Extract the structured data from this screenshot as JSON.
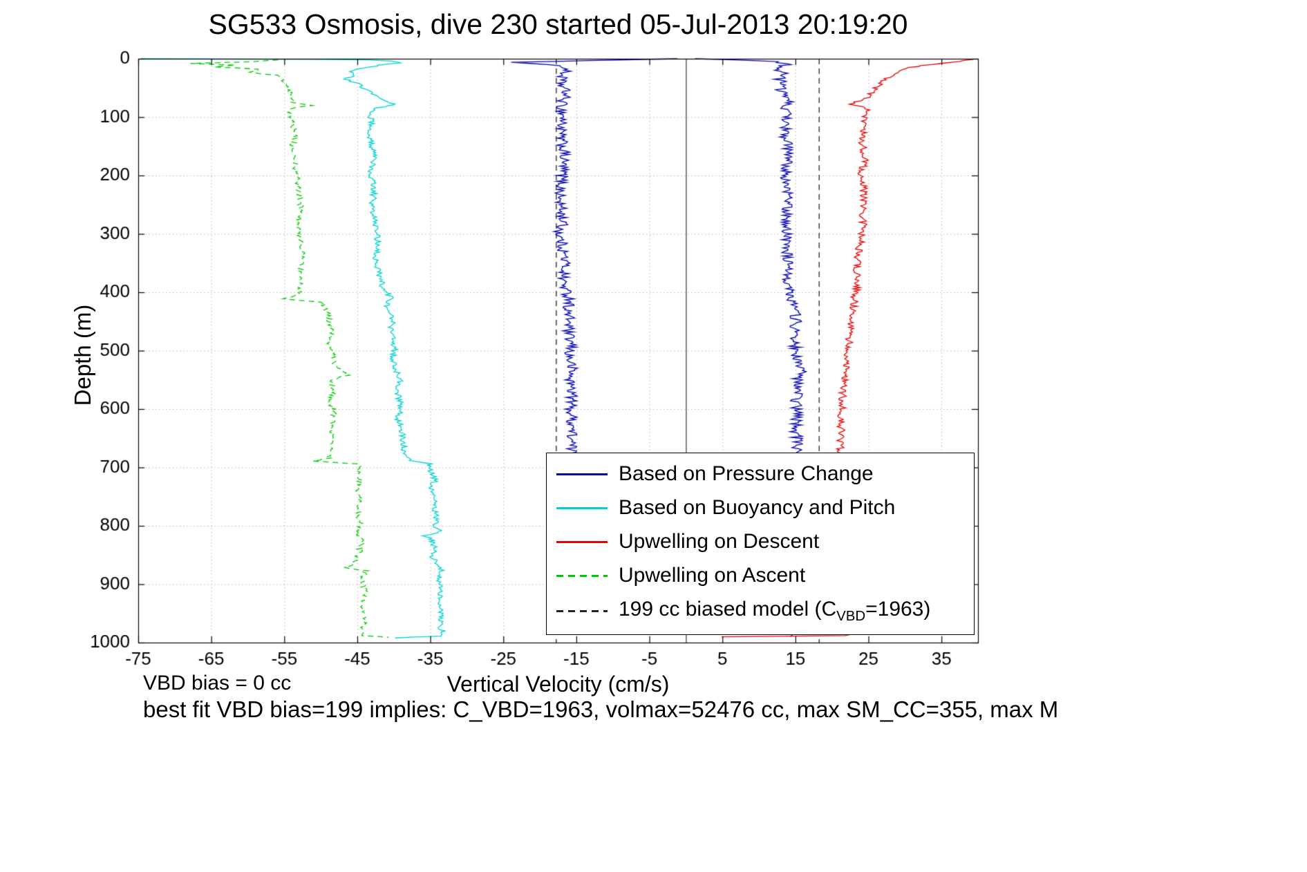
{
  "title": "SG533 Osmosis, dive 230 started 05-Jul-2013 20:19:20",
  "xlabel": "Vertical Velocity (cm/s)",
  "ylabel": "Depth (m)",
  "footer": {
    "vbd_bias": "VBD bias = 0 cc",
    "best_fit": "best fit VBD bias=199 implies: C_VBD=1963, volmax=52476 cc, max SM_CC=355, max M"
  },
  "legend": {
    "items": [
      {
        "label": "Based on Pressure Change",
        "color": "#0000b0",
        "dash": false
      },
      {
        "label": "Based on Buoyancy and Pitch",
        "color": "#00d0d0",
        "dash": false
      },
      {
        "label": "Upwelling on Descent",
        "color": "#e80000",
        "dash": false
      },
      {
        "label": "Upwelling on Ascent",
        "color": "#00c800",
        "dash": true
      },
      {
        "label_prefix": "199 cc biased model (C",
        "label_sub": "VBD",
        "label_suffix": "=1963)",
        "color": "#222222",
        "dash": true
      }
    ]
  },
  "chart_data": {
    "type": "line",
    "title": "SG533 Osmosis, dive 230 started 05-Jul-2013 20:19:20",
    "xlabel": "Vertical Velocity (cm/s)",
    "ylabel": "Depth (m)",
    "xlim": [
      -75,
      40
    ],
    "ylim": [
      0,
      1000
    ],
    "y_axis_reversed": true,
    "grid": true,
    "x_ticks": [
      -75,
      -65,
      -55,
      -45,
      -35,
      -25,
      -15,
      -5,
      5,
      15,
      25,
      35
    ],
    "y_ticks": [
      0,
      100,
      200,
      300,
      400,
      500,
      600,
      700,
      800,
      900,
      1000
    ],
    "zero_line_x": 0,
    "model_lines_x": [
      -17.8,
      18.2
    ],
    "model_line_color": "#222222",
    "grid_color": "#b5b5b5",
    "series": [
      {
        "name": "Based on Pressure Change (descent)",
        "color": "#0000b0",
        "dash": false,
        "noise": 0.8,
        "points": [
          [
            0,
            -0.5
          ],
          [
            3,
            -14
          ],
          [
            6,
            -23.2
          ],
          [
            10,
            -18.5
          ],
          [
            16,
            -16.2
          ],
          [
            25,
            -16.8
          ],
          [
            40,
            -17.2
          ],
          [
            60,
            -16.4
          ],
          [
            80,
            -17.1
          ],
          [
            100,
            -16.8
          ],
          [
            130,
            -17.2
          ],
          [
            160,
            -16.7
          ],
          [
            200,
            -16.9
          ],
          [
            240,
            -17.3
          ],
          [
            280,
            -16.8
          ],
          [
            300,
            -17.4
          ],
          [
            320,
            -16.9
          ],
          [
            350,
            -16.5
          ],
          [
            380,
            -16.8
          ],
          [
            400,
            -16.4
          ],
          [
            415,
            -15.7
          ],
          [
            430,
            -16.3
          ],
          [
            450,
            -15.9
          ],
          [
            470,
            -16.2
          ],
          [
            490,
            -15.7
          ],
          [
            510,
            -16.0
          ],
          [
            530,
            -15.6
          ],
          [
            550,
            -15.9
          ],
          [
            570,
            -15.5
          ],
          [
            600,
            -15.8
          ],
          [
            630,
            -15.5
          ],
          [
            660,
            -15.7
          ],
          [
            690,
            -15.5
          ],
          [
            750,
            -15.4
          ],
          [
            850,
            -15.3
          ],
          [
            950,
            -15.2
          ],
          [
            985,
            -15.2
          ]
        ]
      },
      {
        "name": "Based on Pressure Change (ascent)",
        "color": "#0000b0",
        "dash": false,
        "noise": 0.8,
        "points": [
          [
            0,
            0.5
          ],
          [
            2,
            6
          ],
          [
            5,
            12.8
          ],
          [
            10,
            13.6
          ],
          [
            18,
            12.4
          ],
          [
            25,
            13.8
          ],
          [
            35,
            12.6
          ],
          [
            45,
            13.9
          ],
          [
            55,
            12.8
          ],
          [
            70,
            14.4
          ],
          [
            85,
            13.4
          ],
          [
            100,
            14.0
          ],
          [
            130,
            13.5
          ],
          [
            160,
            14.1
          ],
          [
            200,
            13.6
          ],
          [
            240,
            14.0
          ],
          [
            280,
            13.7
          ],
          [
            320,
            14.0
          ],
          [
            360,
            13.8
          ],
          [
            400,
            14.3
          ],
          [
            425,
            14.9
          ],
          [
            450,
            15.1
          ],
          [
            475,
            14.8
          ],
          [
            500,
            15.0
          ],
          [
            520,
            15.2
          ],
          [
            540,
            15.9
          ],
          [
            552,
            15.1
          ],
          [
            570,
            15.3
          ],
          [
            590,
            15.0
          ],
          [
            610,
            15.3
          ],
          [
            635,
            15.0
          ],
          [
            660,
            15.3
          ],
          [
            680,
            15.1
          ],
          [
            750,
            15.0
          ],
          [
            850,
            14.7
          ],
          [
            950,
            14.6
          ],
          [
            978,
            14.9
          ],
          [
            990,
            14.7
          ]
        ]
      },
      {
        "name": "Based on Buoyancy and Pitch",
        "color": "#00d0d0",
        "dash": false,
        "noise": 0.45,
        "points": [
          [
            0,
            -74.5
          ],
          [
            1,
            -52
          ],
          [
            2,
            -44
          ],
          [
            4,
            -40.5
          ],
          [
            7,
            -39.2
          ],
          [
            11,
            -41.8
          ],
          [
            16,
            -44.3
          ],
          [
            22,
            -46.3
          ],
          [
            28,
            -45.4
          ],
          [
            35,
            -46.6
          ],
          [
            42,
            -45.2
          ],
          [
            52,
            -43.8
          ],
          [
            62,
            -42.6
          ],
          [
            72,
            -41.2
          ],
          [
            79,
            -39.7
          ],
          [
            84,
            -42.1
          ],
          [
            92,
            -43.4
          ],
          [
            105,
            -43.0
          ],
          [
            135,
            -43.3
          ],
          [
            165,
            -42.8
          ],
          [
            195,
            -43.1
          ],
          [
            225,
            -42.7
          ],
          [
            255,
            -43.0
          ],
          [
            285,
            -42.5
          ],
          [
            315,
            -42.2
          ],
          [
            345,
            -42.5
          ],
          [
            375,
            -41.9
          ],
          [
            395,
            -41.4
          ],
          [
            410,
            -40.2
          ],
          [
            420,
            -41.0
          ],
          [
            435,
            -40.6
          ],
          [
            452,
            -40.1
          ],
          [
            468,
            -40.5
          ],
          [
            484,
            -40.0
          ],
          [
            500,
            -39.9
          ],
          [
            518,
            -40.2
          ],
          [
            536,
            -39.7
          ],
          [
            552,
            -38.9
          ],
          [
            562,
            -39.7
          ],
          [
            578,
            -39.3
          ],
          [
            598,
            -39.1
          ],
          [
            618,
            -39.4
          ],
          [
            638,
            -38.9
          ],
          [
            658,
            -38.7
          ],
          [
            678,
            -38.5
          ],
          [
            688,
            -37.6
          ],
          [
            694,
            -35.1
          ],
          [
            708,
            -34.9
          ],
          [
            722,
            -34.4
          ],
          [
            736,
            -34.8
          ],
          [
            752,
            -34.2
          ],
          [
            768,
            -34.6
          ],
          [
            784,
            -34.1
          ],
          [
            800,
            -34.5
          ],
          [
            810,
            -33.6
          ],
          [
            817,
            -35.7
          ],
          [
            823,
            -34.9
          ],
          [
            838,
            -34.3
          ],
          [
            853,
            -34.7
          ],
          [
            866,
            -34.0
          ],
          [
            874,
            -33.5
          ],
          [
            888,
            -33.9
          ],
          [
            906,
            -33.5
          ],
          [
            926,
            -33.8
          ],
          [
            946,
            -33.4
          ],
          [
            966,
            -33.7
          ],
          [
            984,
            -33.3
          ],
          [
            989,
            -33.6
          ],
          [
            992,
            -40.2
          ]
        ]
      },
      {
        "name": "Upwelling on Ascent",
        "color": "#00c800",
        "dash": true,
        "noise": 0.4,
        "points": [
          [
            2,
            -55.5
          ],
          [
            5,
            -59
          ],
          [
            8,
            -67.8
          ],
          [
            11,
            -61.5
          ],
          [
            14,
            -64.5
          ],
          [
            18,
            -58.5
          ],
          [
            23,
            -60
          ],
          [
            28,
            -56.2
          ],
          [
            36,
            -55.4
          ],
          [
            48,
            -54.6
          ],
          [
            62,
            -54.1
          ],
          [
            74,
            -53.8
          ],
          [
            80,
            -51.4
          ],
          [
            86,
            -54.4
          ],
          [
            100,
            -54.0
          ],
          [
            128,
            -53.6
          ],
          [
            156,
            -53.9
          ],
          [
            190,
            -53.4
          ],
          [
            225,
            -53.1
          ],
          [
            260,
            -52.7
          ],
          [
            295,
            -53.0
          ],
          [
            330,
            -52.5
          ],
          [
            365,
            -52.8
          ],
          [
            395,
            -52.9
          ],
          [
            406,
            -53.2
          ],
          [
            411,
            -55.4
          ],
          [
            417,
            -49.7
          ],
          [
            432,
            -49.2
          ],
          [
            450,
            -48.8
          ],
          [
            468,
            -48.4
          ],
          [
            486,
            -48.9
          ],
          [
            505,
            -48.3
          ],
          [
            524,
            -48.0
          ],
          [
            542,
            -46.4
          ],
          [
            551,
            -48.6
          ],
          [
            568,
            -48.1
          ],
          [
            586,
            -48.7
          ],
          [
            606,
            -48.2
          ],
          [
            628,
            -48.6
          ],
          [
            650,
            -48.2
          ],
          [
            672,
            -48.7
          ],
          [
            684,
            -49.0
          ],
          [
            689,
            -51.2
          ],
          [
            694,
            -44.7
          ],
          [
            710,
            -44.9
          ],
          [
            728,
            -44.5
          ],
          [
            746,
            -45.0
          ],
          [
            764,
            -44.6
          ],
          [
            782,
            -44.9
          ],
          [
            800,
            -44.5
          ],
          [
            814,
            -44.8
          ],
          [
            830,
            -44.4
          ],
          [
            848,
            -44.8
          ],
          [
            864,
            -45.3
          ],
          [
            871,
            -46.7
          ],
          [
            877,
            -43.9
          ],
          [
            895,
            -44.3
          ],
          [
            915,
            -43.9
          ],
          [
            935,
            -44.2
          ],
          [
            955,
            -43.9
          ],
          [
            972,
            -44.2
          ],
          [
            984,
            -43.9
          ],
          [
            988,
            -44.4
          ],
          [
            991,
            -40.4
          ]
        ]
      },
      {
        "name": "Upwelling on Descent",
        "color": "#e80000",
        "dash": false,
        "noise": 0.55,
        "points": [
          [
            1,
            39.8
          ],
          [
            3,
            38.5
          ],
          [
            6,
            36.5
          ],
          [
            10,
            33.5
          ],
          [
            15,
            31
          ],
          [
            21,
            29.4
          ],
          [
            28,
            28.3
          ],
          [
            36,
            27.4
          ],
          [
            46,
            26.4
          ],
          [
            58,
            25.5
          ],
          [
            70,
            24.7
          ],
          [
            78,
            22.3
          ],
          [
            84,
            24.9
          ],
          [
            95,
            24.3
          ],
          [
            115,
            24.6
          ],
          [
            140,
            24.1
          ],
          [
            170,
            24.5
          ],
          [
            200,
            24.0
          ],
          [
            230,
            24.5
          ],
          [
            260,
            24.1
          ],
          [
            290,
            24.4
          ],
          [
            320,
            23.8
          ],
          [
            350,
            23.4
          ],
          [
            380,
            23.6
          ],
          [
            410,
            23.1
          ],
          [
            440,
            22.8
          ],
          [
            470,
            22.5
          ],
          [
            500,
            22.2
          ],
          [
            530,
            21.9
          ],
          [
            560,
            21.6
          ],
          [
            590,
            21.4
          ],
          [
            620,
            21.3
          ],
          [
            650,
            21.2
          ],
          [
            690,
            21.0
          ],
          [
            760,
            20.8
          ],
          [
            840,
            20.8
          ],
          [
            920,
            20.9
          ],
          [
            970,
            21.1
          ],
          [
            983,
            21.4
          ],
          [
            986,
            22.3
          ],
          [
            988,
            21.5
          ],
          [
            990,
            5.2
          ]
        ]
      }
    ]
  }
}
